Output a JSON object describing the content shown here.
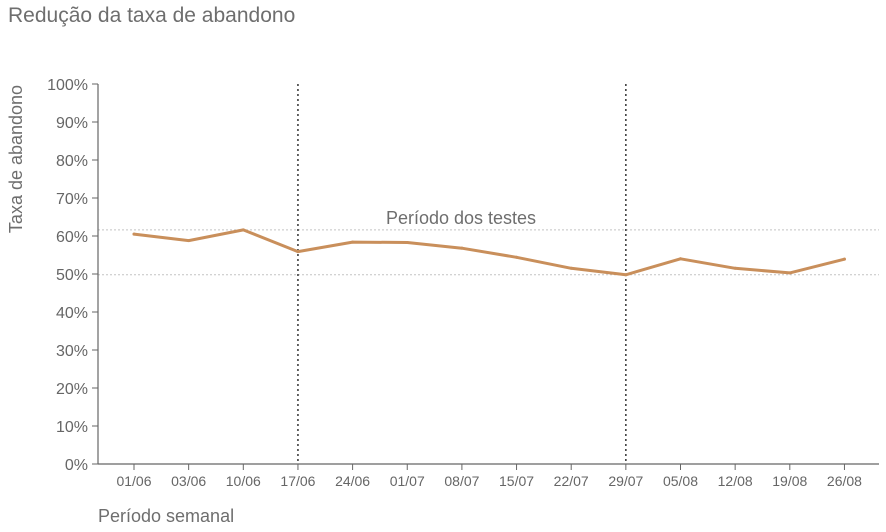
{
  "chart_data": {
    "type": "line",
    "title": "Redução da taxa de abandono",
    "xlabel": "Período semanal",
    "ylabel": "Taxa de abandono",
    "categories": [
      "01/06",
      "03/06",
      "10/06",
      "17/06",
      "24/06",
      "01/07",
      "08/07",
      "15/07",
      "22/07",
      "29/07",
      "05/08",
      "12/08",
      "19/08",
      "26/08"
    ],
    "series": [
      {
        "values": [
          60.5,
          58.8,
          61.6,
          55.9,
          58.4,
          58.3,
          56.8,
          54.4,
          51.5,
          49.8,
          54.0,
          51.5,
          50.3,
          53.9
        ]
      }
    ],
    "ylim": [
      0,
      100
    ],
    "yticks": [
      "0%",
      "10%",
      "20%",
      "30%",
      "40%",
      "50%",
      "60%",
      "70%",
      "80%",
      "90%",
      "100%"
    ],
    "reference_lines": [
      61.6,
      49.8
    ],
    "test_period": {
      "start": "17/06",
      "end": "29/07",
      "label": "Período dos testes"
    },
    "grid": false,
    "legend": "none",
    "line_color": "#c98f5b"
  }
}
